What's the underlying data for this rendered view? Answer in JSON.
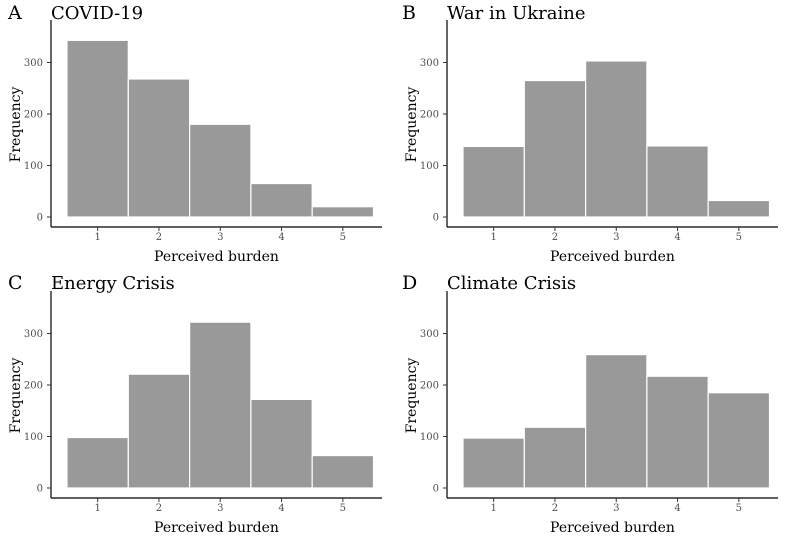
{
  "chart_data": [
    {
      "panel": "A",
      "type": "bar",
      "title": "COVID-19",
      "xlabel": "Perceived burden",
      "ylabel": "Frequency",
      "categories": [
        "1",
        "2",
        "3",
        "4",
        "5"
      ],
      "values": [
        343,
        268,
        180,
        65,
        20
      ],
      "yticks": [
        "0",
        "100",
        "200",
        "300"
      ],
      "ylim": [
        0,
        365
      ]
    },
    {
      "panel": "B",
      "type": "bar",
      "title": "War in Ukraine",
      "xlabel": "Perceived burden",
      "ylabel": "Frequency",
      "categories": [
        "1",
        "2",
        "3",
        "4",
        "5"
      ],
      "values": [
        137,
        265,
        303,
        138,
        32
      ],
      "yticks": [
        "0",
        "100",
        "200",
        "300"
      ],
      "ylim": [
        0,
        365
      ]
    },
    {
      "panel": "C",
      "type": "bar",
      "title": "Energy Crisis",
      "xlabel": "Perceived burden",
      "ylabel": "Frequency",
      "categories": [
        "1",
        "2",
        "3",
        "4",
        "5"
      ],
      "values": [
        98,
        221,
        322,
        172,
        63
      ],
      "yticks": [
        "0",
        "100",
        "200",
        "300"
      ],
      "ylim": [
        0,
        365
      ]
    },
    {
      "panel": "D",
      "type": "bar",
      "title": "Climate Crisis",
      "xlabel": "Perceived burden",
      "ylabel": "Frequency",
      "categories": [
        "1",
        "2",
        "3",
        "4",
        "5"
      ],
      "values": [
        97,
        118,
        259,
        217,
        185
      ],
      "yticks": [
        "0",
        "100",
        "200",
        "300"
      ],
      "ylim": [
        0,
        365
      ]
    }
  ],
  "colors": {
    "bar_fill": "#999999",
    "bar_border": "#ffffff",
    "axis": "#000000",
    "tick_text": "#4d4d4d"
  }
}
